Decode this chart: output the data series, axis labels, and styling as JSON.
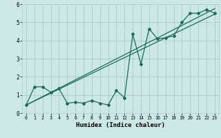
{
  "xlabel": "Humidex (Indice chaleur)",
  "xlim": [
    -0.5,
    23.5
  ],
  "ylim": [
    0,
    6
  ],
  "xticks": [
    0,
    1,
    2,
    3,
    4,
    5,
    6,
    7,
    8,
    9,
    10,
    11,
    12,
    13,
    14,
    15,
    16,
    17,
    18,
    19,
    20,
    21,
    22,
    23
  ],
  "yticks": [
    0,
    1,
    2,
    3,
    4,
    5,
    6
  ],
  "bg_color": "#cce8e6",
  "grid_color": "#aacfcc",
  "line_color": "#1a6b5a",
  "curve_x": [
    0,
    1,
    2,
    3,
    4,
    5,
    6,
    7,
    8,
    9,
    10,
    11,
    12,
    13,
    14,
    15,
    16,
    17,
    18,
    19,
    20,
    21,
    22,
    23
  ],
  "curve_y": [
    0.45,
    1.45,
    1.45,
    1.15,
    1.35,
    0.55,
    0.6,
    0.55,
    0.7,
    0.55,
    0.45,
    1.25,
    0.85,
    4.35,
    2.7,
    4.65,
    4.1,
    4.15,
    4.25,
    5.0,
    5.5,
    5.5,
    5.7,
    5.5
  ],
  "line1_x": [
    0,
    23
  ],
  "line1_y": [
    0.45,
    5.45
  ],
  "line2_x": [
    0,
    23
  ],
  "line2_y": [
    0.45,
    5.75
  ]
}
